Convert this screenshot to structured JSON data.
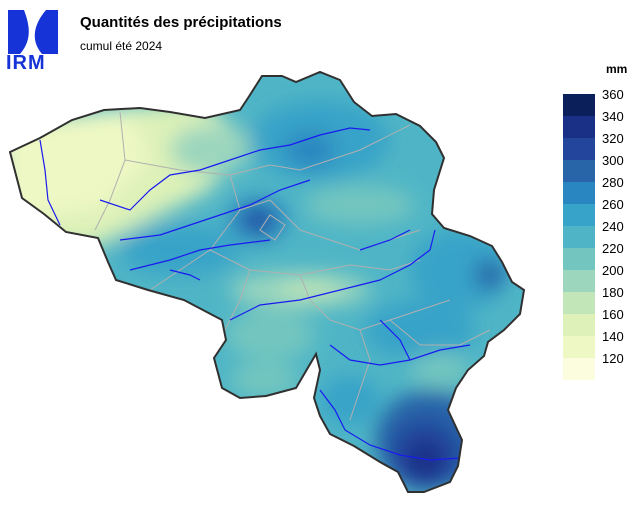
{
  "header": {
    "title": "Quantités des précipitations",
    "subtitle": "cumul été 2024"
  },
  "logo": {
    "text": "IRM",
    "color": "#1533d6"
  },
  "legend": {
    "unit": "mm",
    "ticks": [
      "360",
      "340",
      "320",
      "300",
      "280",
      "260",
      "240",
      "220",
      "200",
      "180",
      "160",
      "140",
      "120"
    ],
    "colors": [
      "#0b1f5a",
      "#1a2f86",
      "#23459c",
      "#2764a8",
      "#2a86c0",
      "#38a3c8",
      "#4fb5c6",
      "#73c6bf",
      "#9bd6bd",
      "#c2e6b7",
      "#ddf1b8",
      "#eef8c4",
      "#fbfdde"
    ]
  },
  "map": {
    "region": "Belgique",
    "colors": {
      "border": "#303030",
      "river": "#1a1af0",
      "province": "#b0b0b0"
    }
  }
}
